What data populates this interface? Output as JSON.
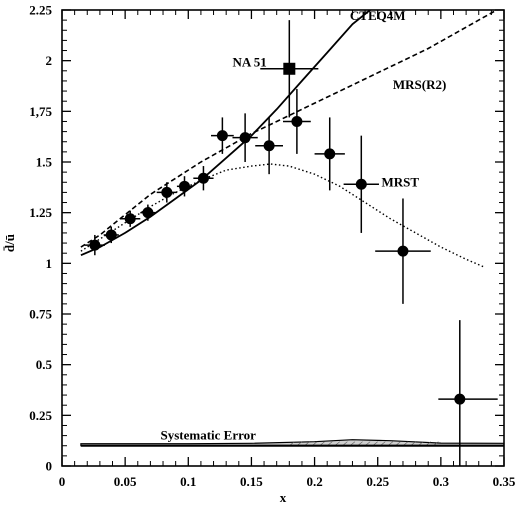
{
  "chart_data": {
    "type": "scatter",
    "title": "",
    "xlabel": "x",
    "ylabel": "d̄/ū",
    "xlim": [
      0,
      0.35
    ],
    "ylim": [
      0,
      2.25
    ],
    "grid": false,
    "x_ticks": [
      {
        "value": 0,
        "label": "0"
      },
      {
        "value": 0.05,
        "label": "0.05"
      },
      {
        "value": 0.1,
        "label": "0.1"
      },
      {
        "value": 0.15,
        "label": "0.15"
      },
      {
        "value": 0.2,
        "label": "0.2"
      },
      {
        "value": 0.25,
        "label": "0.25"
      },
      {
        "value": 0.3,
        "label": "0.3"
      },
      {
        "value": 0.35,
        "label": "0.35"
      }
    ],
    "y_ticks": [
      {
        "value": 0,
        "label": "0"
      },
      {
        "value": 0.25,
        "label": "0.25"
      },
      {
        "value": 0.5,
        "label": "0.5"
      },
      {
        "value": 0.75,
        "label": "0.75"
      },
      {
        "value": 1,
        "label": "1"
      },
      {
        "value": 1.25,
        "label": "1.25"
      },
      {
        "value": 1.5,
        "label": "1.5"
      },
      {
        "value": 1.75,
        "label": "1,75"
      },
      {
        "value": 2,
        "label": "2"
      },
      {
        "value": 2.25,
        "label": "2.25"
      }
    ],
    "data_points": [
      {
        "x": 0.026,
        "y": 1.09,
        "xerr": [
          0.008,
          0.008
        ],
        "yerr": [
          0.05,
          0.05
        ]
      },
      {
        "x": 0.039,
        "y": 1.14,
        "xerr": [
          0.006,
          0.006
        ],
        "yerr": [
          0.04,
          0.04
        ]
      },
      {
        "x": 0.054,
        "y": 1.22,
        "xerr": [
          0.008,
          0.008
        ],
        "yerr": [
          0.04,
          0.04
        ]
      },
      {
        "x": 0.068,
        "y": 1.25,
        "xerr": [
          0.006,
          0.006
        ],
        "yerr": [
          0.04,
          0.04
        ]
      },
      {
        "x": 0.083,
        "y": 1.35,
        "xerr": [
          0.008,
          0.008
        ],
        "yerr": [
          0.05,
          0.05
        ]
      },
      {
        "x": 0.097,
        "y": 1.38,
        "xerr": [
          0.006,
          0.006
        ],
        "yerr": [
          0.05,
          0.05
        ]
      },
      {
        "x": 0.112,
        "y": 1.42,
        "xerr": [
          0.008,
          0.008
        ],
        "yerr": [
          0.06,
          0.06
        ]
      },
      {
        "x": 0.127,
        "y": 1.63,
        "xerr": [
          0.009,
          0.009
        ],
        "yerr": [
          0.09,
          0.09
        ]
      },
      {
        "x": 0.145,
        "y": 1.62,
        "xerr": [
          0.01,
          0.01
        ],
        "yerr": [
          0.12,
          0.12
        ]
      },
      {
        "x": 0.164,
        "y": 1.58,
        "xerr": [
          0.011,
          0.011
        ],
        "yerr": [
          0.14,
          0.14
        ]
      },
      {
        "x": 0.186,
        "y": 1.7,
        "xerr": [
          0.011,
          0.011
        ],
        "yerr": [
          0.16,
          0.16
        ]
      },
      {
        "x": 0.212,
        "y": 1.54,
        "xerr": [
          0.012,
          0.012
        ],
        "yerr": [
          0.18,
          0.18
        ]
      },
      {
        "x": 0.237,
        "y": 1.39,
        "xerr": [
          0.014,
          0.014
        ],
        "yerr": [
          0.24,
          0.24
        ]
      },
      {
        "x": 0.27,
        "y": 1.06,
        "xerr": [
          0.022,
          0.022
        ],
        "yerr": [
          0.26,
          0.26
        ]
      },
      {
        "x": 0.315,
        "y": 0.33,
        "xerr": [
          0.017,
          0.03
        ],
        "yerr": [
          0.39,
          0.39
        ]
      }
    ],
    "na51": {
      "label": "NA 51",
      "x": 0.18,
      "y": 1.96,
      "xerr": [
        0.023,
        0.023
      ],
      "yerr": [
        0.24,
        0.24
      ]
    },
    "curves": [
      {
        "name": "CTEQ4M",
        "style": "solid",
        "x": [
          0.015,
          0.03,
          0.05,
          0.07,
          0.09,
          0.11,
          0.13,
          0.15,
          0.17,
          0.19,
          0.21,
          0.23,
          0.25
        ],
        "y": [
          1.04,
          1.08,
          1.15,
          1.23,
          1.32,
          1.41,
          1.52,
          1.63,
          1.76,
          1.9,
          2.04,
          2.18,
          2.28
        ]
      },
      {
        "name": "MRS(R2)",
        "style": "dashed",
        "x": [
          0.015,
          0.03,
          0.05,
          0.07,
          0.09,
          0.11,
          0.13,
          0.15,
          0.17,
          0.19,
          0.21,
          0.23,
          0.25,
          0.27,
          0.29,
          0.31,
          0.33,
          0.35
        ],
        "y": [
          1.08,
          1.14,
          1.24,
          1.34,
          1.42,
          1.5,
          1.57,
          1.64,
          1.7,
          1.76,
          1.82,
          1.88,
          1.94,
          2.0,
          2.06,
          2.13,
          2.2,
          2.27
        ]
      },
      {
        "name": "MRST",
        "style": "dotted",
        "x": [
          0.015,
          0.03,
          0.05,
          0.07,
          0.09,
          0.11,
          0.13,
          0.15,
          0.165,
          0.18,
          0.2,
          0.22,
          0.24,
          0.26,
          0.28,
          0.3,
          0.32,
          0.335
        ],
        "y": [
          1.06,
          1.12,
          1.2,
          1.28,
          1.35,
          1.41,
          1.46,
          1.48,
          1.49,
          1.48,
          1.44,
          1.38,
          1.3,
          1.22,
          1.15,
          1.08,
          1.02,
          0.98
        ]
      }
    ],
    "annotations": [
      {
        "text": "CTEQ4M",
        "x": 0.228,
        "y": 2.2
      },
      {
        "text": "NA 51",
        "x": 0.135,
        "y": 1.97
      },
      {
        "text": "MRS(R2)",
        "x": 0.262,
        "y": 1.86
      },
      {
        "text": "MRST",
        "x": 0.253,
        "y": 1.38
      },
      {
        "text": "Systematic Error",
        "x": 0.078,
        "y": 0.13
      }
    ],
    "systematic_error": {
      "label": "Systematic Error",
      "x": [
        0.015,
        0.05,
        0.1,
        0.15,
        0.2,
        0.23,
        0.26,
        0.3,
        0.35
      ],
      "upper": [
        0.11,
        0.11,
        0.11,
        0.112,
        0.12,
        0.13,
        0.125,
        0.113,
        0.112
      ],
      "lower": [
        0.1,
        0.1,
        0.1,
        0.1,
        0.1,
        0.1,
        0.1,
        0.1,
        0.1
      ]
    }
  }
}
